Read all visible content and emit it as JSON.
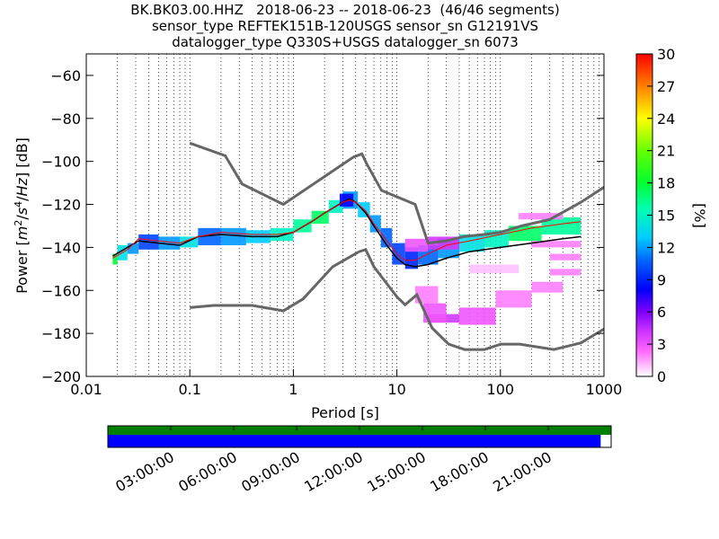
{
  "title": {
    "line1": "BK.BK03.00.HHZ   2018-06-23 -- 2018-06-23  (46/46 segments)",
    "line2": "sensor_type REFTEK151B-120USGS sensor_sn G12191VS",
    "line3": "datalogger_type Q330S+USGS datalogger_sn 6073"
  },
  "colorbar": {
    "label": "[%]",
    "ticks": [
      "0",
      "3",
      "6",
      "9",
      "12",
      "15",
      "18",
      "21",
      "24",
      "27",
      "30"
    ],
    "range": [
      0,
      30
    ]
  },
  "timeline": {
    "tick_labels": [
      "03:00:00",
      "06:00:00",
      "09:00:00",
      "12:00:00",
      "15:00:00",
      "18:00:00",
      "21:00:00"
    ],
    "tick_hours": [
      3,
      6,
      9,
      12,
      15,
      18,
      21
    ],
    "coverage_start_hour": 0,
    "coverage_end_hour": 23.5,
    "green_color": "#007f00",
    "blue_color": "#0000ff"
  },
  "chart_data": {
    "type": "heatmap",
    "xlabel": "Period [s]",
    "ylabel": "Power [m²/s⁴/Hz] [dB]",
    "xscale": "log",
    "xlim": [
      0.01,
      1000
    ],
    "ylim": [
      -200,
      -50
    ],
    "x_tick_labels": [
      "0.01",
      "0.1",
      "1",
      "10",
      "100",
      "1000"
    ],
    "x_tick_values": [
      0.01,
      0.1,
      1,
      10,
      100,
      1000
    ],
    "y_tick_labels": [
      "−200",
      "−180",
      "−160",
      "−140",
      "−120",
      "−100",
      "−80",
      "−60"
    ],
    "y_tick_values": [
      -200,
      -180,
      -160,
      -140,
      -120,
      -100,
      -80,
      -60
    ],
    "grid": "dotted vertical at log-decade subdivisions",
    "nhnm": {
      "x": [
        0.1,
        0.22,
        0.32,
        0.8,
        3.8,
        4.6,
        5.1,
        7.1,
        15,
        20,
        30,
        44,
        70,
        100,
        160,
        300,
        600,
        1000
      ],
      "y": [
        -91.5,
        -97.4,
        -110.5,
        -120,
        -98,
        -96.5,
        -101,
        -113.5,
        -120,
        -138,
        -137,
        -135,
        -134,
        -133,
        -130,
        -127,
        -119,
        -112
      ]
    },
    "nlnm": {
      "x": [
        0.1,
        0.17,
        0.4,
        0.8,
        1.24,
        2.4,
        4.3,
        5,
        6,
        10,
        12,
        15.6,
        21.9,
        31.6,
        45,
        70,
        101,
        154,
        328,
        600,
        1000
      ],
      "y": [
        -168,
        -167,
        -167,
        -169.5,
        -164,
        -149,
        -142,
        -141,
        -149,
        -163,
        -166.7,
        -162,
        -177.5,
        -185,
        -187.5,
        -187.5,
        -185,
        -185,
        -187.5,
        -184.4,
        -178
      ]
    },
    "mode_line": {
      "x": [
        0.018,
        0.025,
        0.032,
        0.05,
        0.08,
        0.12,
        0.2,
        0.4,
        0.7,
        1,
        1.5,
        2,
        3,
        3.5,
        4,
        5,
        6,
        8,
        10,
        12,
        15,
        20,
        30,
        50,
        100,
        200,
        400,
        600
      ],
      "y": [
        -145,
        -141,
        -136,
        -137,
        -138,
        -135,
        -133,
        -134,
        -134,
        -133,
        -128,
        -124,
        -119,
        -118,
        -119,
        -123,
        -129,
        -137,
        -143,
        -146,
        -146,
        -143,
        -139,
        -137,
        -134,
        -131,
        -129,
        -128
      ]
    },
    "mean_line": {
      "x": [
        0.018,
        0.025,
        0.032,
        0.05,
        0.08,
        0.12,
        0.2,
        0.4,
        0.7,
        1,
        1.5,
        2,
        3,
        3.5,
        4,
        5,
        6,
        8,
        10,
        12,
        15,
        20,
        30,
        50,
        100,
        200,
        400,
        600
      ],
      "y": [
        -144,
        -140,
        -137,
        -138,
        -139,
        -135,
        -134,
        -135,
        -135,
        -133,
        -128,
        -124,
        -119,
        -117.5,
        -119,
        -124,
        -130,
        -139,
        -145,
        -148,
        -149,
        -148,
        -145,
        -142,
        -140,
        -138,
        -136,
        -135
      ]
    },
    "heat_cells": [
      {
        "x0": 0.018,
        "x1": 0.02,
        "y0": -148,
        "y1": -143,
        "p": 18
      },
      {
        "x0": 0.02,
        "x1": 0.025,
        "y0": -146,
        "y1": -139,
        "p": 14
      },
      {
        "x0": 0.025,
        "x1": 0.032,
        "y0": -143,
        "y1": -138,
        "p": 12
      },
      {
        "x0": 0.032,
        "x1": 0.05,
        "y0": -141,
        "y1": -134,
        "p": 10
      },
      {
        "x0": 0.05,
        "x1": 0.08,
        "y0": -141,
        "y1": -135,
        "p": 12
      },
      {
        "x0": 0.08,
        "x1": 0.12,
        "y0": -140,
        "y1": -135,
        "p": 14
      },
      {
        "x0": 0.12,
        "x1": 0.2,
        "y0": -139,
        "y1": -131,
        "p": 11
      },
      {
        "x0": 0.2,
        "x1": 0.35,
        "y0": -139,
        "y1": -131,
        "p": 12
      },
      {
        "x0": 0.35,
        "x1": 0.6,
        "y0": -138,
        "y1": -132,
        "p": 13
      },
      {
        "x0": 0.6,
        "x1": 1.0,
        "y0": -137,
        "y1": -131,
        "p": 15
      },
      {
        "x0": 1.0,
        "x1": 1.5,
        "y0": -133,
        "y1": -127,
        "p": 16
      },
      {
        "x0": 1.5,
        "x1": 2.2,
        "y0": -129,
        "y1": -123,
        "p": 17
      },
      {
        "x0": 2.2,
        "x1": 3.0,
        "y0": -124,
        "y1": -118,
        "p": 15
      },
      {
        "x0": 3.0,
        "x1": 4.2,
        "y0": -122,
        "y1": -114,
        "p": 12
      },
      {
        "x0": 4.2,
        "x1": 5.5,
        "y0": -126,
        "y1": -119,
        "p": 13
      },
      {
        "x0": 5.5,
        "x1": 7.0,
        "y0": -133,
        "y1": -125,
        "p": 12
      },
      {
        "x0": 7.0,
        "x1": 9.0,
        "y0": -140,
        "y1": -131,
        "p": 11
      },
      {
        "x0": 9.0,
        "x1": 12.0,
        "y0": -148,
        "y1": -138,
        "p": 10
      },
      {
        "x0": 12.0,
        "x1": 16.0,
        "y0": -150,
        "y1": -140,
        "p": 9
      },
      {
        "x0": 16.0,
        "x1": 25.0,
        "y0": -148,
        "y1": -139,
        "p": 11
      },
      {
        "x0": 25.0,
        "x1": 40.0,
        "y0": -145,
        "y1": -136,
        "p": 12
      },
      {
        "x0": 40.0,
        "x1": 70.0,
        "y0": -142,
        "y1": -134,
        "p": 14
      },
      {
        "x0": 70.0,
        "x1": 120.0,
        "y0": -140,
        "y1": -132,
        "p": 15
      },
      {
        "x0": 120.0,
        "x1": 250.0,
        "y0": -137,
        "y1": -130,
        "p": 17
      },
      {
        "x0": 250.0,
        "x1": 600.0,
        "y0": -134,
        "y1": -126,
        "p": 16
      },
      {
        "x0": 12.0,
        "x1": 20.0,
        "y0": -142,
        "y1": -136,
        "p": 3
      },
      {
        "x0": 20.0,
        "x1": 40.0,
        "y0": -141,
        "y1": -135,
        "p": 4
      },
      {
        "x0": 20.0,
        "x1": 40.0,
        "y0": -175,
        "y1": -171,
        "p": 4
      },
      {
        "x0": 40.0,
        "x1": 90.0,
        "y0": -176,
        "y1": -168,
        "p": 3
      },
      {
        "x0": 90.0,
        "x1": 200.0,
        "y0": -168,
        "y1": -160,
        "p": 2
      },
      {
        "x0": 200.0,
        "x1": 400.0,
        "y0": -161,
        "y1": -156,
        "p": 2
      },
      {
        "x0": 300.0,
        "x1": 600.0,
        "y0": -153,
        "y1": -150,
        "p": 2
      },
      {
        "x0": 300.0,
        "x1": 600.0,
        "y0": -146,
        "y1": -143,
        "p": 2
      },
      {
        "x0": 200.0,
        "x1": 600.0,
        "y0": -140,
        "y1": -137,
        "p": 2
      },
      {
        "x0": 150.0,
        "x1": 400.0,
        "y0": -127,
        "y1": -124,
        "p": 2
      },
      {
        "x0": 15.0,
        "x1": 25.0,
        "y0": -166,
        "y1": -158,
        "p": 2
      },
      {
        "x0": 18.0,
        "x1": 30.0,
        "y0": -175,
        "y1": -166,
        "p": 3
      },
      {
        "x0": 50.0,
        "x1": 150.0,
        "y0": -152,
        "y1": -148,
        "p": 1
      },
      {
        "x0": 2.8,
        "x1": 3.8,
        "y0": -121,
        "y1": -115,
        "p": 8
      }
    ]
  }
}
